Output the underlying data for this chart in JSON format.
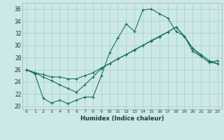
{
  "xlabel": "Humidex (Indice chaleur)",
  "bg_color": "#cce8e8",
  "grid_color": "#aacccc",
  "line_color": "#1a7060",
  "xlim": [
    -0.5,
    23.5
  ],
  "ylim": [
    19.5,
    37
  ],
  "xticks": [
    0,
    1,
    2,
    3,
    4,
    5,
    6,
    7,
    8,
    9,
    10,
    11,
    12,
    13,
    14,
    15,
    16,
    17,
    18,
    19,
    20,
    21,
    22,
    23
  ],
  "yticks": [
    20,
    22,
    24,
    26,
    28,
    30,
    32,
    34,
    36
  ],
  "line1_x": [
    0,
    1,
    2,
    3,
    4,
    5,
    6,
    7,
    8,
    9,
    10,
    11,
    12,
    13,
    14,
    15,
    16,
    17,
    18,
    19,
    20,
    21,
    22,
    23
  ],
  "line1_y": [
    26.0,
    25.3,
    21.3,
    20.5,
    21.0,
    20.4,
    21.0,
    21.5,
    21.5,
    25.0,
    28.8,
    31.2,
    33.5,
    32.3,
    35.8,
    36.0,
    35.2,
    34.5,
    32.3,
    31.5,
    29.0,
    28.2,
    27.2,
    27.5
  ],
  "line2_x": [
    0,
    1,
    2,
    3,
    4,
    5,
    6,
    7,
    8,
    9,
    10,
    11,
    12,
    13,
    14,
    15,
    16,
    17,
    18,
    19,
    20,
    21,
    22,
    23
  ],
  "line2_y": [
    26.0,
    25.5,
    25.2,
    24.8,
    24.8,
    24.5,
    24.5,
    25.0,
    25.5,
    26.3,
    27.0,
    27.8,
    28.5,
    29.3,
    30.0,
    30.7,
    31.4,
    32.2,
    33.0,
    31.5,
    29.5,
    28.5,
    27.5,
    27.0
  ],
  "line3_x": [
    0,
    1,
    2,
    3,
    4,
    5,
    6,
    7,
    8,
    9,
    10,
    11,
    12,
    13,
    14,
    15,
    16,
    17,
    18,
    19,
    20,
    21,
    22,
    23
  ],
  "line3_y": [
    26.0,
    25.5,
    24.8,
    24.2,
    23.5,
    22.9,
    22.3,
    23.5,
    24.8,
    26.2,
    27.0,
    27.8,
    28.5,
    29.2,
    30.0,
    30.8,
    31.5,
    32.2,
    33.0,
    31.5,
    29.5,
    28.2,
    27.2,
    27.0
  ]
}
